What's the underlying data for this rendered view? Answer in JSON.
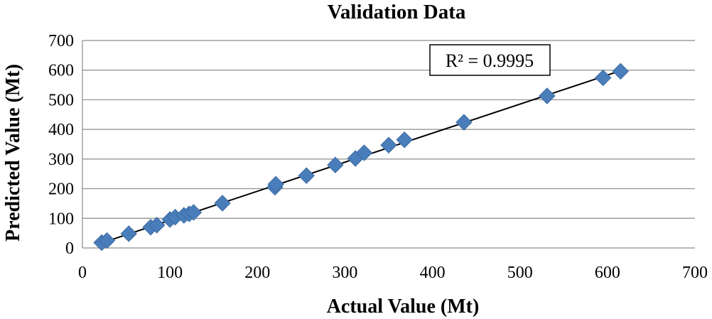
{
  "chart_data": {
    "type": "scatter",
    "title": "Validation Data",
    "xlabel": "Actual Value (Mt)",
    "ylabel": "Predicted Value (Mt)",
    "xlim": [
      0,
      700
    ],
    "ylim": [
      0,
      700
    ],
    "xticks": [
      0,
      100,
      200,
      300,
      400,
      500,
      600,
      700
    ],
    "yticks": [
      0,
      100,
      200,
      300,
      400,
      500,
      600,
      700
    ],
    "grid": "horizontal",
    "marker": "diamond",
    "colors": {
      "points": "#4a7ebb",
      "trendline": "#000000",
      "grid": "#8c8c8c"
    },
    "annotation": "R² = 0.9995",
    "trendline": {
      "x": [
        22,
        615
      ],
      "y": [
        17,
        598
      ]
    },
    "series": [
      {
        "x": [
          22,
          28,
          53,
          78,
          85,
          100,
          106,
          116,
          122,
          127,
          160,
          220,
          221,
          256,
          289,
          312,
          322,
          350,
          368,
          436,
          531,
          595,
          615
        ],
        "y": [
          18,
          25,
          48,
          70,
          77,
          96,
          104,
          110,
          115,
          120,
          151,
          205,
          215,
          244,
          280,
          302,
          321,
          347,
          365,
          424,
          513,
          574,
          596
        ]
      }
    ]
  }
}
